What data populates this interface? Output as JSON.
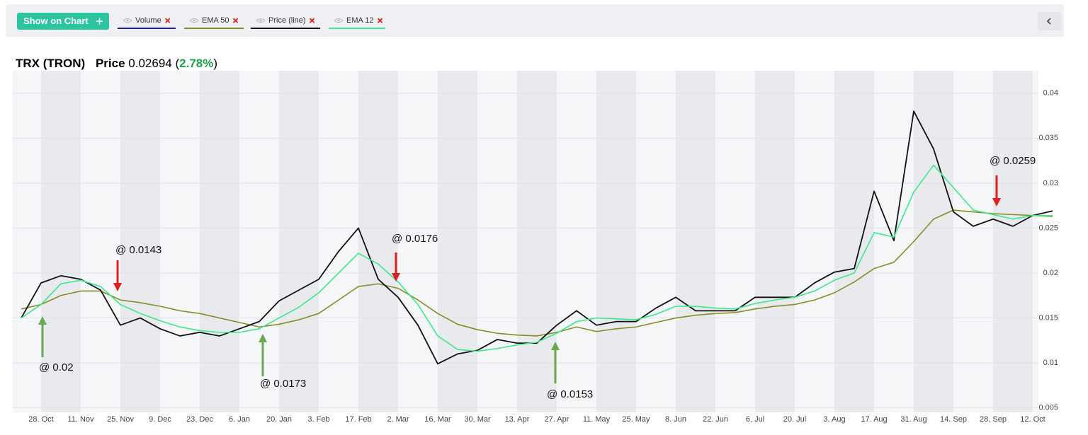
{
  "toolbar": {
    "button": "Show on Chart"
  },
  "chart_data": {
    "type": "line",
    "header": {
      "symbol": "TRX (TRON)",
      "price_label": "Price",
      "price": "0.02694",
      "open": "(",
      "change": "2.78%",
      "close": ")",
      "change_color": "#1aa34a"
    },
    "volume_indicator": {
      "name": "Volume",
      "color": "#1f1fb0"
    },
    "categories": [
      null,
      "28. Oct",
      null,
      "11. Nov",
      null,
      "25. Nov",
      null,
      "9. Dec",
      null,
      "23. Dec",
      null,
      "6. Jan",
      null,
      "20. Jan",
      null,
      "3. Feb",
      null,
      "17. Feb",
      null,
      "2. Mar",
      null,
      "16. Mar",
      null,
      "30. Mar",
      null,
      "13. Apr",
      null,
      "27. Apr",
      null,
      "11. May",
      null,
      "25. May",
      null,
      "8. Jun",
      null,
      "22. Jun",
      null,
      "6. Jul",
      null,
      "20. Jul",
      null,
      "3. Aug",
      null,
      "17. Aug",
      null,
      "31. Aug",
      null,
      "14. Sep",
      null,
      "28. Sep",
      null,
      "12. Oct",
      null
    ],
    "series": [
      {
        "name": "EMA 50",
        "color": "#8c8a26",
        "values": [
          0.016,
          0.0165,
          0.0175,
          0.018,
          0.018,
          0.017,
          0.0167,
          0.0163,
          0.0158,
          0.0155,
          0.015,
          0.0145,
          0.014,
          0.0143,
          0.0148,
          0.0155,
          0.017,
          0.0185,
          0.0188,
          0.0183,
          0.017,
          0.0155,
          0.0143,
          0.0137,
          0.0133,
          0.0131,
          0.013,
          0.0134,
          0.014,
          0.0135,
          0.0138,
          0.014,
          0.0145,
          0.015,
          0.0153,
          0.0155,
          0.0156,
          0.016,
          0.0163,
          0.0165,
          0.017,
          0.0178,
          0.019,
          0.0205,
          0.0212,
          0.0235,
          0.026,
          0.027,
          0.0268,
          0.0266,
          0.0265,
          0.0264,
          0.0263
        ]
      },
      {
        "name": "Price (line)",
        "color": "#111111",
        "values": [
          0.015,
          0.0189,
          0.0197,
          0.0193,
          0.0181,
          0.0142,
          0.015,
          0.0138,
          0.013,
          0.0134,
          0.013,
          0.0138,
          0.0146,
          0.0169,
          0.0181,
          0.0193,
          0.0224,
          0.025,
          0.0193,
          0.0173,
          0.0142,
          0.0099,
          0.011,
          0.0114,
          0.0126,
          0.0122,
          0.0122,
          0.0142,
          0.0158,
          0.0142,
          0.0146,
          0.0146,
          0.0161,
          0.0173,
          0.0158,
          0.0158,
          0.0158,
          0.0173,
          0.0173,
          0.0173,
          0.0189,
          0.0201,
          0.0205,
          0.0291,
          0.0236,
          0.038,
          0.0338,
          0.0268,
          0.0252,
          0.026,
          0.0252,
          0.0264,
          0.0269
        ]
      },
      {
        "name": "EMA 12",
        "color": "#3ee88c",
        "values": [
          0.015,
          0.0165,
          0.0188,
          0.0192,
          0.0185,
          0.0165,
          0.0155,
          0.0147,
          0.014,
          0.0136,
          0.0134,
          0.0134,
          0.0138,
          0.015,
          0.0162,
          0.0178,
          0.02,
          0.0222,
          0.021,
          0.019,
          0.0165,
          0.013,
          0.0115,
          0.0113,
          0.0116,
          0.012,
          0.0123,
          0.0133,
          0.0146,
          0.015,
          0.0149,
          0.0148,
          0.0154,
          0.0163,
          0.0163,
          0.0161,
          0.016,
          0.0166,
          0.017,
          0.0173,
          0.018,
          0.0192,
          0.02,
          0.0245,
          0.024,
          0.029,
          0.032,
          0.0295,
          0.027,
          0.0265,
          0.026,
          0.0264,
          0.0264
        ]
      }
    ],
    "ylim": [
      0.0045,
      0.0425
    ],
    "yticks": [
      0.005,
      0.01,
      0.015,
      0.02,
      0.025,
      0.03,
      0.035,
      0.04
    ],
    "grid": true,
    "annotations": [
      {
        "text": "@ 0.02",
        "direction": "up",
        "color": "#6aa84f"
      },
      {
        "text": "@ 0.0143",
        "direction": "down",
        "color": "#e02020"
      },
      {
        "text": "@ 0.0173",
        "direction": "up",
        "color": "#6aa84f"
      },
      {
        "text": "@ 0.0176",
        "direction": "down",
        "color": "#e02020"
      },
      {
        "text": "@ 0.0153",
        "direction": "up",
        "color": "#6aa84f"
      },
      {
        "text": "@ 0.0259",
        "direction": "down",
        "color": "#e02020"
      }
    ]
  }
}
